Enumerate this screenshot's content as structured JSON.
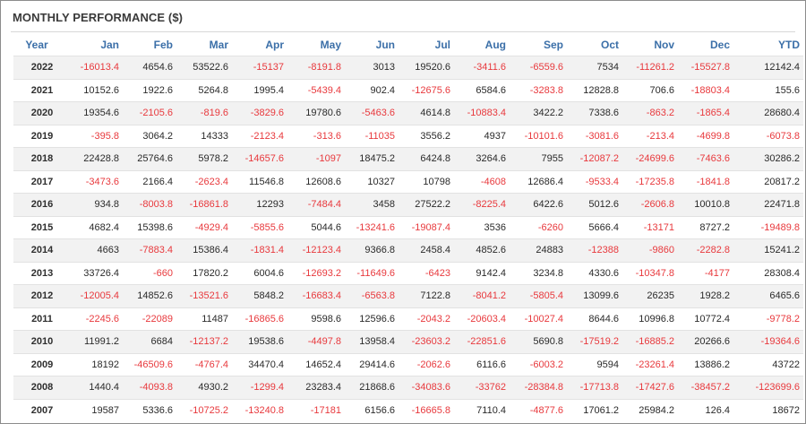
{
  "title": "MONTHLY PERFORMANCE ($)",
  "colors": {
    "header": "#3b6fa8",
    "negative": "#e8393d",
    "positive": "#2a2a2a",
    "row_shade": "#f2f2f2"
  },
  "columns": [
    "Year",
    "Jan",
    "Feb",
    "Mar",
    "Apr",
    "May",
    "Jun",
    "Jul",
    "Aug",
    "Sep",
    "Oct",
    "Nov",
    "Dec",
    "YTD"
  ],
  "rows": [
    [
      "2022",
      "-16013.4",
      "4654.6",
      "53522.6",
      "-15137",
      "-8191.8",
      "3013",
      "19520.6",
      "-3411.6",
      "-6559.6",
      "7534",
      "-11261.2",
      "-15527.8",
      "12142.4"
    ],
    [
      "2021",
      "10152.6",
      "1922.6",
      "5264.8",
      "1995.4",
      "-5439.4",
      "902.4",
      "-12675.6",
      "6584.6",
      "-3283.8",
      "12828.8",
      "706.6",
      "-18803.4",
      "155.6"
    ],
    [
      "2020",
      "19354.6",
      "-2105.6",
      "-819.6",
      "-3829.6",
      "19780.6",
      "-5463.6",
      "4614.8",
      "-10883.4",
      "3422.2",
      "7338.6",
      "-863.2",
      "-1865.4",
      "28680.4"
    ],
    [
      "2019",
      "-395.8",
      "3064.2",
      "14333",
      "-2123.4",
      "-313.6",
      "-11035",
      "3556.2",
      "4937",
      "-10101.6",
      "-3081.6",
      "-213.4",
      "-4699.8",
      "-6073.8"
    ],
    [
      "2018",
      "22428.8",
      "25764.6",
      "5978.2",
      "-14657.6",
      "-1097",
      "18475.2",
      "6424.8",
      "3264.6",
      "7955",
      "-12087.2",
      "-24699.6",
      "-7463.6",
      "30286.2"
    ],
    [
      "2017",
      "-3473.6",
      "2166.4",
      "-2623.4",
      "11546.8",
      "12608.6",
      "10327",
      "10798",
      "-4608",
      "12686.4",
      "-9533.4",
      "-17235.8",
      "-1841.8",
      "20817.2"
    ],
    [
      "2016",
      "934.8",
      "-8003.8",
      "-16861.8",
      "12293",
      "-7484.4",
      "3458",
      "27522.2",
      "-8225.4",
      "6422.6",
      "5012.6",
      "-2606.8",
      "10010.8",
      "22471.8"
    ],
    [
      "2015",
      "4682.4",
      "15398.6",
      "-4929.4",
      "-5855.6",
      "5044.6",
      "-13241.6",
      "-19087.4",
      "3536",
      "-6260",
      "5666.4",
      "-13171",
      "8727.2",
      "-19489.8"
    ],
    [
      "2014",
      "4663",
      "-7883.4",
      "15386.4",
      "-1831.4",
      "-12123.4",
      "9366.8",
      "2458.4",
      "4852.6",
      "24883",
      "-12388",
      "-9860",
      "-2282.8",
      "15241.2"
    ],
    [
      "2013",
      "33726.4",
      "-660",
      "17820.2",
      "6004.6",
      "-12693.2",
      "-11649.6",
      "-6423",
      "9142.4",
      "3234.8",
      "4330.6",
      "-10347.8",
      "-4177",
      "28308.4"
    ],
    [
      "2012",
      "-12005.4",
      "14852.6",
      "-13521.6",
      "5848.2",
      "-16683.4",
      "-6563.8",
      "7122.8",
      "-8041.2",
      "-5805.4",
      "13099.6",
      "26235",
      "1928.2",
      "6465.6"
    ],
    [
      "2011",
      "-2245.6",
      "-22089",
      "11487",
      "-16865.6",
      "9598.6",
      "12596.6",
      "-2043.2",
      "-20603.4",
      "-10027.4",
      "8644.6",
      "10996.8",
      "10772.4",
      "-9778.2"
    ],
    [
      "2010",
      "11991.2",
      "6684",
      "-12137.2",
      "19538.6",
      "-4497.8",
      "13958.4",
      "-23603.2",
      "-22851.6",
      "5690.8",
      "-17519.2",
      "-16885.2",
      "20266.6",
      "-19364.6"
    ],
    [
      "2009",
      "18192",
      "-46509.6",
      "-4767.4",
      "34470.4",
      "14652.4",
      "29414.6",
      "-2062.6",
      "6116.6",
      "-6003.2",
      "9594",
      "-23261.4",
      "13886.2",
      "43722"
    ],
    [
      "2008",
      "1440.4",
      "-4093.8",
      "4930.2",
      "-1299.4",
      "23283.4",
      "21868.6",
      "-34083.6",
      "-33762",
      "-28384.8",
      "-17713.8",
      "-17427.6",
      "-38457.2",
      "-123699.6"
    ],
    [
      "2007",
      "19587",
      "5336.6",
      "-10725.2",
      "-13240.8",
      "-17181",
      "6156.6",
      "-16665.8",
      "7110.4",
      "-4877.6",
      "17061.2",
      "25984.2",
      "126.4",
      "18672"
    ]
  ]
}
